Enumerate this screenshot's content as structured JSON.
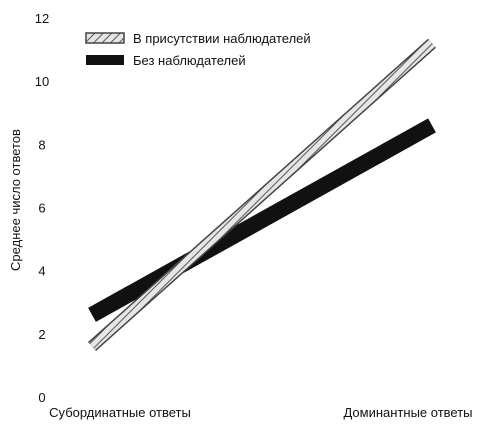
{
  "chart_data": {
    "type": "line",
    "title": "",
    "xlabel": "",
    "ylabel": "Среднее число ответов",
    "categories": [
      "Субординатные ответы",
      "Доминантные ответы"
    ],
    "ylim": [
      0,
      12
    ],
    "yticks": [
      0,
      2,
      4,
      6,
      8,
      10,
      12
    ],
    "grid": false,
    "legend_position": "top-left",
    "series": [
      {
        "name": "В присутствии наблюдателей",
        "values": [
          1.6,
          11.2
        ],
        "style": "hatched-light",
        "color": "#cfcfcf"
      },
      {
        "name": "Без наблюдателей",
        "values": [
          2.6,
          8.6
        ],
        "style": "solid-dark",
        "color": "#111111"
      }
    ]
  }
}
